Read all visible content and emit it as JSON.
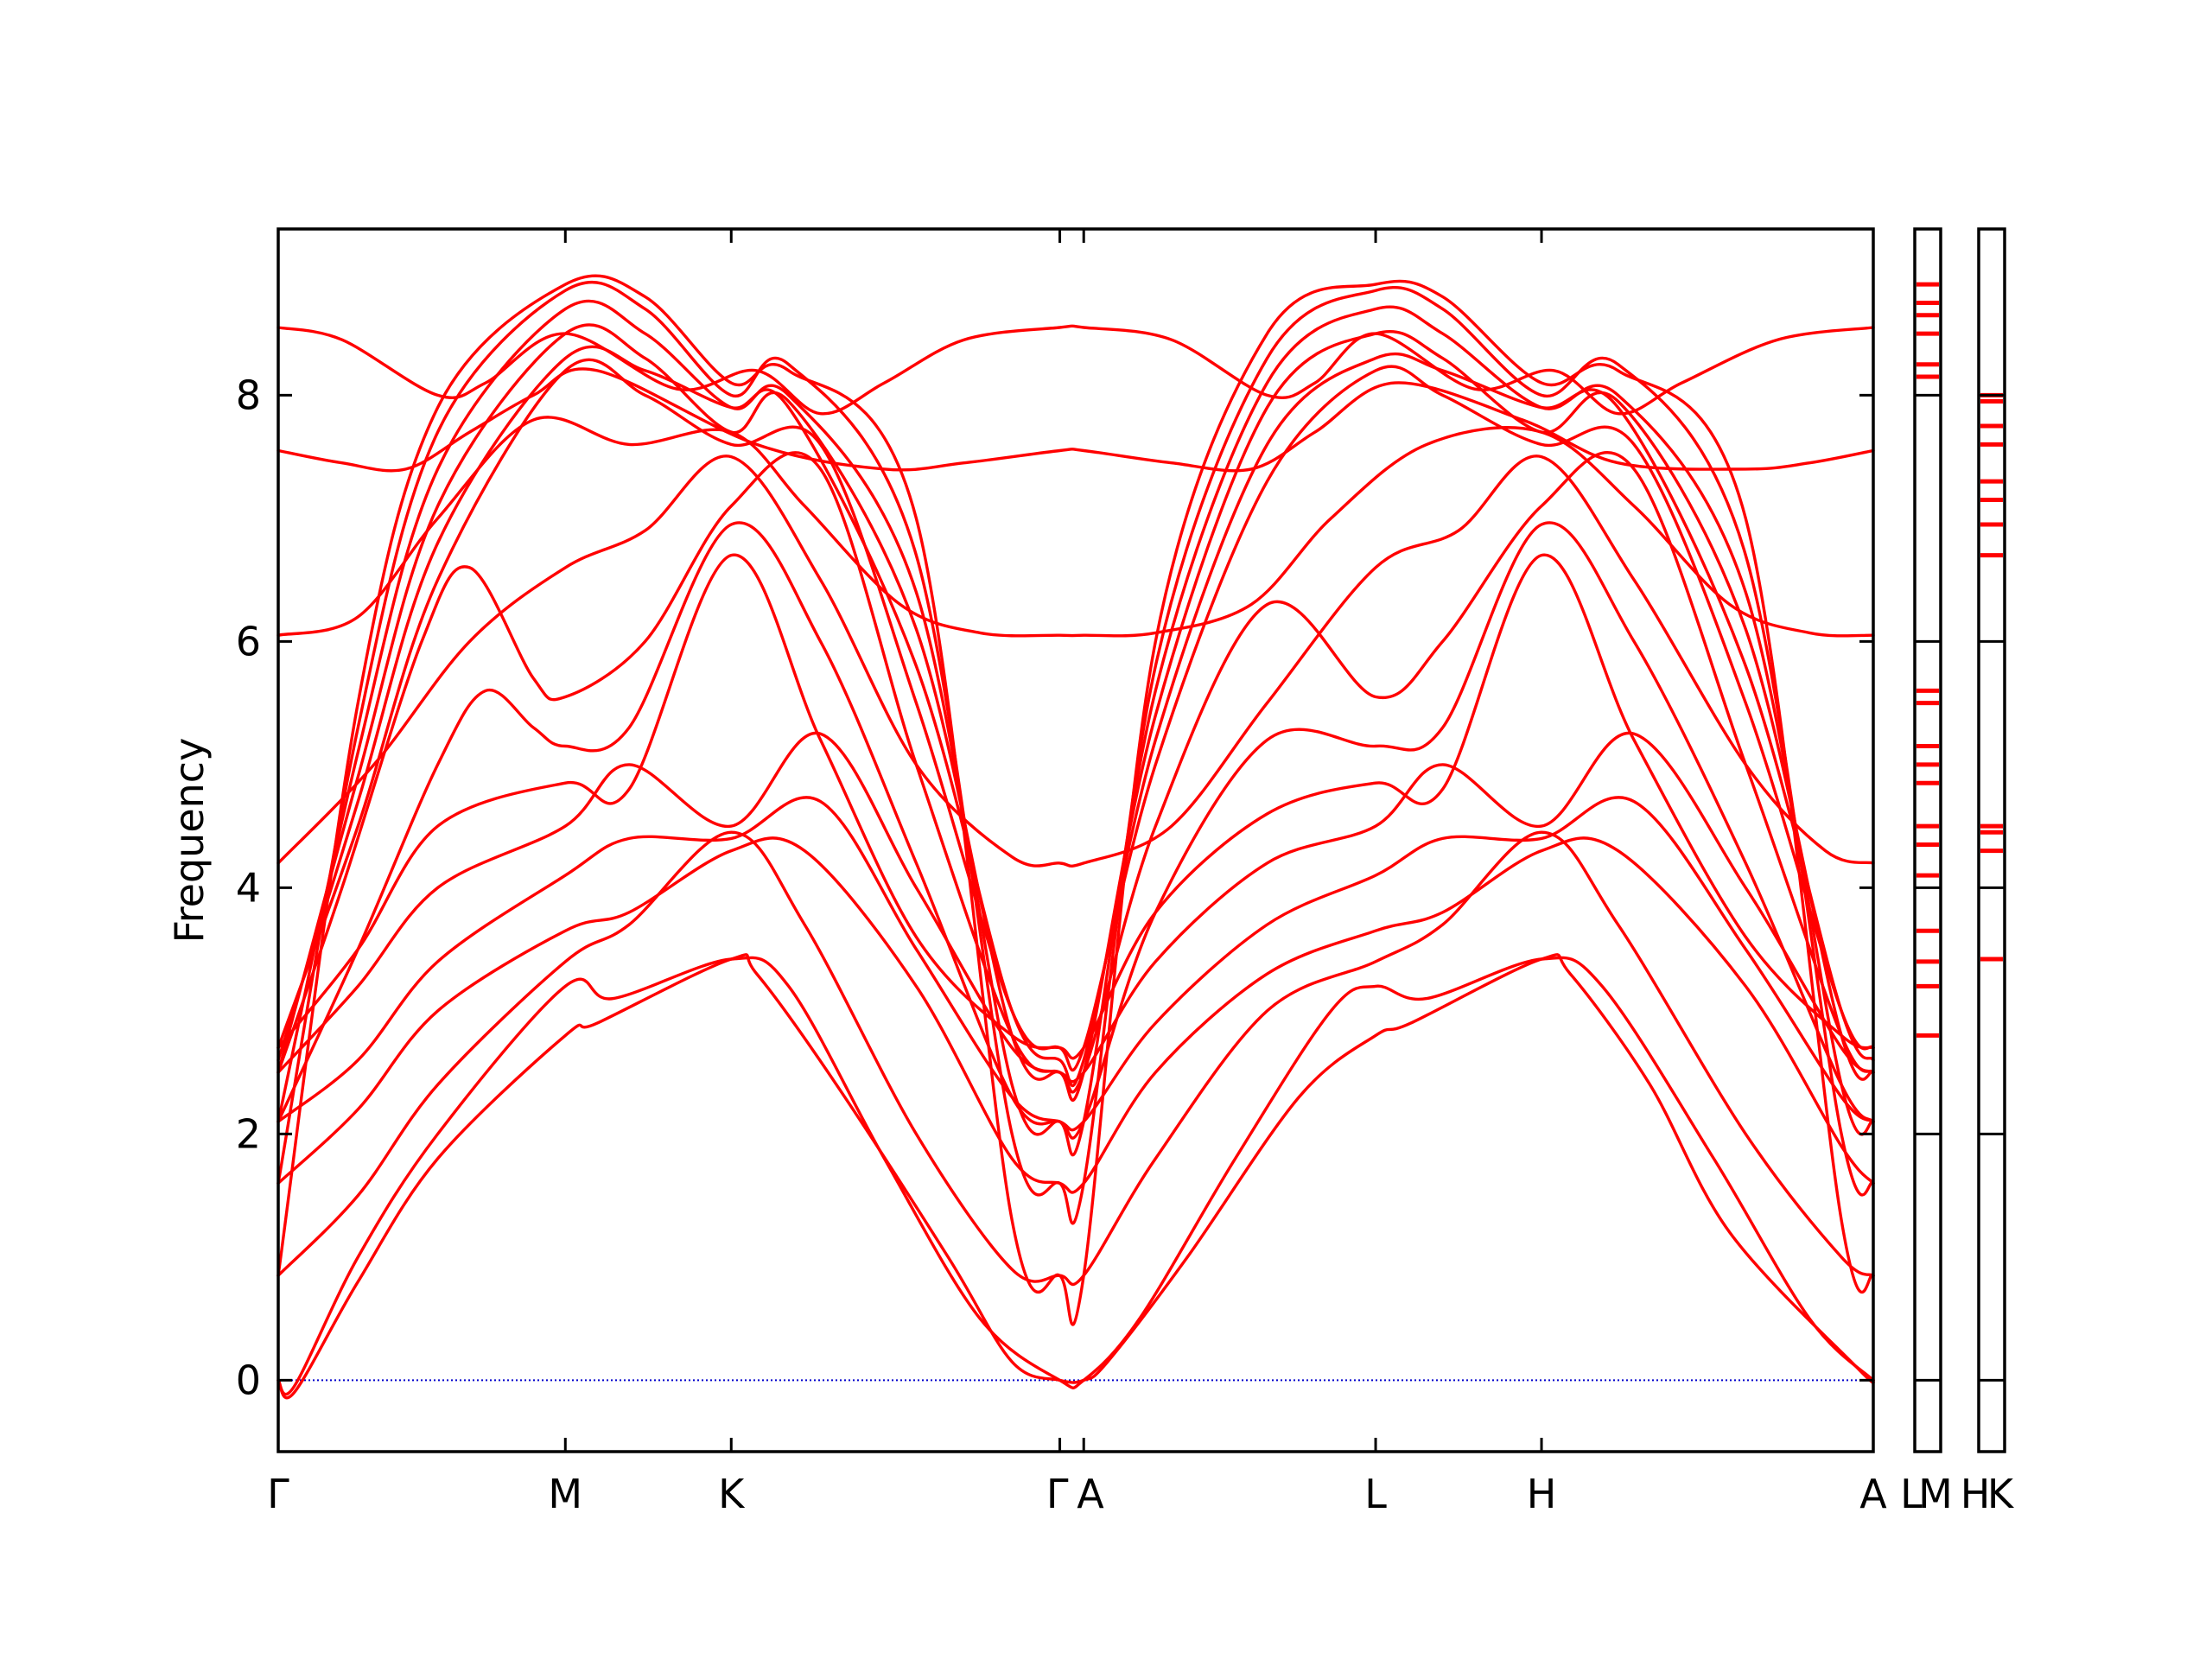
{
  "chart_data": {
    "type": "line",
    "ylabel": "Frequency",
    "ylim": [
      -0.58,
      9.35
    ],
    "yticks": [
      0,
      2,
      4,
      6,
      8
    ],
    "xticks": [
      "Γ",
      "M",
      "K",
      "Γ",
      "A",
      "L",
      "H",
      "A"
    ],
    "side_panel_labels": [
      "L",
      "M",
      "H",
      "K"
    ],
    "series_color": "#ff0000",
    "zero_line_color": "#0000cc",
    "path_points": [
      0,
      0.18,
      0.284,
      0.49,
      0.505,
      0.688,
      0.792,
      1.0
    ],
    "bands": [
      {
        "name": "",
        "x": [
          0,
          0.01,
          0.05,
          0.1,
          0.18,
          0.2,
          0.284,
          0.3,
          0.35,
          0.42,
          0.46,
          0.49,
          0.505,
          0.52,
          0.57,
          0.64,
          0.688,
          0.71,
          0.792,
          0.81,
          0.86,
          0.91,
          0.99,
          1.0
        ],
        "y": [
          0,
          -0.1,
          0.8,
          1.8,
          2.8,
          2.9,
          3.42,
          3.3,
          2.4,
          1.0,
          0.15,
          0,
          0,
          0.15,
          1.0,
          2.3,
          2.8,
          2.9,
          3.42,
          3.3,
          2.4,
          1.2,
          0.1,
          0
        ]
      },
      {
        "name": "",
        "x": [
          0,
          0.01,
          0.05,
          0.1,
          0.18,
          0.21,
          0.284,
          0.32,
          0.38,
          0.44,
          0.49,
          0.505,
          0.54,
          0.6,
          0.66,
          0.688,
          0.72,
          0.792,
          0.83,
          0.9,
          0.96,
          1.0
        ],
        "y": [
          0,
          -0.05,
          1.0,
          2.0,
          3.2,
          3.1,
          3.42,
          3.2,
          1.8,
          0.5,
          0,
          0,
          0.5,
          1.8,
          3.0,
          3.2,
          3.1,
          3.42,
          3.2,
          1.8,
          0.5,
          0
        ]
      },
      {
        "name": "",
        "x": [
          0,
          0.05,
          0.1,
          0.18,
          0.22,
          0.284,
          0.33,
          0.4,
          0.46,
          0.49,
          0.505,
          0.55,
          0.62,
          0.688,
          0.73,
          0.792,
          0.84,
          0.92,
          0.98,
          1.0
        ],
        "y": [
          0.85,
          1.5,
          2.4,
          3.4,
          3.7,
          4.45,
          3.7,
          2.0,
          0.9,
          0.85,
          0.85,
          1.8,
          3.0,
          3.4,
          3.7,
          4.45,
          3.7,
          2.0,
          1.0,
          0.85
        ]
      },
      {
        "name": "",
        "x": [
          0,
          0.05,
          0.1,
          0.18,
          0.22,
          0.284,
          0.33,
          0.4,
          0.46,
          0.49,
          0.505,
          0.55,
          0.62,
          0.688,
          0.73,
          0.792,
          0.84,
          0.92,
          0.98,
          1.0
        ],
        "y": [
          1.6,
          2.2,
          3.0,
          3.65,
          3.8,
          4.3,
          4.3,
          3.2,
          1.8,
          1.6,
          1.6,
          2.5,
          3.3,
          3.65,
          3.8,
          4.3,
          4.3,
          3.2,
          1.9,
          1.6
        ]
      },
      {
        "name": "",
        "x": [
          0,
          0.05,
          0.1,
          0.18,
          0.22,
          0.284,
          0.34,
          0.4,
          0.46,
          0.49,
          0.505,
          0.55,
          0.62,
          0.688,
          0.73,
          0.792,
          0.85,
          0.92,
          0.98,
          1.0
        ],
        "y": [
          2.1,
          2.6,
          3.4,
          4.1,
          4.4,
          4.4,
          4.7,
          3.5,
          2.3,
          2.1,
          2.1,
          2.9,
          3.7,
          4.1,
          4.4,
          4.4,
          4.7,
          3.5,
          2.3,
          2.1
        ]
      },
      {
        "name": "",
        "x": [
          0,
          0.05,
          0.1,
          0.18,
          0.22,
          0.284,
          0.34,
          0.4,
          0.46,
          0.49,
          0.505,
          0.55,
          0.62,
          0.688,
          0.73,
          0.792,
          0.85,
          0.92,
          0.98,
          1.0
        ],
        "y": [
          2.5,
          3.2,
          4.0,
          4.5,
          5.0,
          4.5,
          5.25,
          4.0,
          2.7,
          2.5,
          2.5,
          3.4,
          4.2,
          4.5,
          5.0,
          4.5,
          5.25,
          4.0,
          2.7,
          2.5
        ]
      },
      {
        "name": "",
        "x": [
          0,
          0.05,
          0.1,
          0.18,
          0.22,
          0.284,
          0.34,
          0.4,
          0.46,
          0.49,
          0.505,
          0.55,
          0.62,
          0.688,
          0.73,
          0.792,
          0.85,
          0.92,
          0.98,
          1.0
        ],
        "y": [
          2.7,
          3.5,
          4.5,
          4.85,
          4.8,
          6.7,
          5.2,
          3.6,
          2.8,
          2.7,
          2.7,
          3.8,
          4.6,
          4.85,
          4.8,
          6.7,
          5.2,
          3.6,
          2.8,
          2.7
        ]
      },
      {
        "name": "",
        "x": [
          0,
          0.05,
          0.1,
          0.13,
          0.16,
          0.18,
          0.22,
          0.284,
          0.34,
          0.4,
          0.46,
          0.49,
          0.505,
          0.55,
          0.62,
          0.688,
          0.73,
          0.792,
          0.85,
          0.92,
          0.98,
          1.0
        ],
        "y": [
          2.1,
          3.5,
          5.0,
          5.6,
          5.3,
          5.15,
          5.3,
          6.95,
          6.0,
          4.2,
          2.3,
          2.1,
          2.1,
          3.8,
          5.2,
          5.15,
          5.3,
          6.95,
          6.0,
          4.2,
          2.4,
          2.1
        ]
      },
      {
        "name": "",
        "x": [
          0,
          0.04,
          0.09,
          0.12,
          0.16,
          0.18,
          0.23,
          0.284,
          0.34,
          0.4,
          0.46,
          0.49,
          0.505,
          0.55,
          0.62,
          0.688,
          0.73,
          0.792,
          0.85,
          0.92,
          0.98,
          1.0
        ],
        "y": [
          2.5,
          4.0,
          6.0,
          6.6,
          5.7,
          5.55,
          6.0,
          7.1,
          7.4,
          5.0,
          2.8,
          2.5,
          2.5,
          4.5,
          6.3,
          5.55,
          6.0,
          7.1,
          7.4,
          5.0,
          2.8,
          2.5
        ]
      },
      {
        "name": "",
        "x": [
          0,
          0.05,
          0.1,
          0.18,
          0.23,
          0.284,
          0.34,
          0.4,
          0.46,
          0.49,
          0.505,
          0.55,
          0.62,
          0.688,
          0.73,
          0.792,
          0.85,
          0.92,
          0.98,
          1.0
        ],
        "y": [
          2.7,
          4.5,
          6.5,
          8.2,
          8.0,
          7.6,
          7.6,
          5.5,
          3.0,
          2.7,
          2.7,
          5.0,
          7.3,
          8.2,
          8.0,
          7.6,
          7.6,
          5.5,
          3.0,
          2.7
        ]
      },
      {
        "name": "",
        "x": [
          0,
          0.05,
          0.1,
          0.18,
          0.23,
          0.284,
          0.32,
          0.4,
          0.46,
          0.49,
          0.505,
          0.55,
          0.62,
          0.688,
          0.73,
          0.792,
          0.84,
          0.92,
          0.98,
          1.0
        ],
        "y": [
          2.6,
          4.7,
          6.8,
          8.3,
          8.2,
          7.9,
          7.9,
          5.8,
          3.0,
          2.6,
          2.6,
          5.2,
          7.6,
          8.3,
          8.2,
          7.9,
          7.9,
          5.8,
          3.0,
          2.6
        ]
      },
      {
        "name": "",
        "x": [
          0,
          0.05,
          0.1,
          0.18,
          0.23,
          0.284,
          0.32,
          0.4,
          0.46,
          0.49,
          0.505,
          0.55,
          0.62,
          0.688,
          0.73,
          0.792,
          0.84,
          0.92,
          0.98,
          1.0
        ],
        "y": [
          2.5,
          4.9,
          7.1,
          8.5,
          8.3,
          7.7,
          7.95,
          6.1,
          2.8,
          2.5,
          2.5,
          5.4,
          7.9,
          8.5,
          8.3,
          7.7,
          7.95,
          6.1,
          2.8,
          2.5
        ]
      },
      {
        "name": "",
        "x": [
          0,
          0.05,
          0.1,
          0.18,
          0.23,
          0.284,
          0.32,
          0.4,
          0.46,
          0.49,
          0.505,
          0.55,
          0.62,
          0.688,
          0.73,
          0.792,
          0.84,
          0.92,
          0.98,
          1.0
        ],
        "y": [
          2.1,
          5.1,
          7.4,
          8.7,
          8.5,
          7.9,
          8.0,
          6.4,
          2.4,
          2.1,
          2.1,
          5.6,
          8.1,
          8.7,
          8.5,
          7.9,
          8.0,
          6.4,
          2.4,
          2.1
        ]
      },
      {
        "name": "",
        "x": [
          0,
          0.05,
          0.1,
          0.18,
          0.23,
          0.284,
          0.32,
          0.4,
          0.46,
          0.49,
          0.505,
          0.55,
          0.62,
          0.688,
          0.73,
          0.792,
          0.84,
          0.92,
          0.98,
          1.0
        ],
        "y": [
          1.6,
          5.3,
          7.7,
          8.85,
          8.7,
          8.0,
          8.25,
          6.7,
          2.0,
          1.6,
          1.6,
          5.8,
          8.3,
          8.85,
          8.7,
          8.0,
          8.25,
          6.7,
          2.0,
          1.6
        ]
      },
      {
        "name": "",
        "x": [
          0,
          0.05,
          0.1,
          0.18,
          0.23,
          0.284,
          0.32,
          0.4,
          0.46,
          0.49,
          0.505,
          0.55,
          0.62,
          0.688,
          0.73,
          0.792,
          0.84,
          0.92,
          0.98,
          1.0
        ],
        "y": [
          0.85,
          5.5,
          7.9,
          8.9,
          8.8,
          8.1,
          8.2,
          7.0,
          1.3,
          0.85,
          0.85,
          6.0,
          8.5,
          8.9,
          8.8,
          8.1,
          8.2,
          7.0,
          1.3,
          0.85
        ]
      },
      {
        "name": "",
        "x": [
          0,
          0.06,
          0.12,
          0.18,
          0.23,
          0.284,
          0.34,
          0.4,
          0.46,
          0.49,
          0.505,
          0.56,
          0.62,
          0.688,
          0.74,
          0.792,
          0.85,
          0.92,
          0.97,
          1.0
        ],
        "y": [
          4.2,
          5.0,
          6.0,
          6.6,
          6.9,
          7.5,
          6.5,
          5.0,
          4.25,
          4.2,
          4.2,
          4.5,
          5.5,
          6.6,
          6.9,
          7.5,
          6.5,
          5.0,
          4.3,
          4.2
        ]
      },
      {
        "name": "",
        "x": [
          0,
          0.05,
          0.1,
          0.16,
          0.22,
          0.284,
          0.33,
          0.39,
          0.44,
          0.49,
          0.505,
          0.55,
          0.61,
          0.66,
          0.72,
          0.792,
          0.85,
          0.91,
          0.96,
          1.0
        ],
        "y": [
          6.05,
          6.2,
          7.0,
          7.8,
          7.6,
          7.7,
          7.1,
          6.3,
          6.07,
          6.05,
          6.05,
          6.07,
          6.3,
          7.0,
          7.6,
          7.7,
          7.1,
          6.3,
          6.07,
          6.05
        ]
      },
      {
        "name": "",
        "x": [
          0,
          0.04,
          0.08,
          0.12,
          0.16,
          0.2,
          0.3,
          0.38,
          0.43,
          0.49,
          0.505,
          0.56,
          0.61,
          0.65,
          0.7,
          0.78,
          0.84,
          0.92,
          0.96,
          1.0
        ],
        "y": [
          7.55,
          7.45,
          7.4,
          7.7,
          8.0,
          8.2,
          7.6,
          7.4,
          7.45,
          7.55,
          7.55,
          7.45,
          7.4,
          7.7,
          8.1,
          7.8,
          7.45,
          7.4,
          7.45,
          7.55
        ]
      },
      {
        "name": "",
        "x": [
          0,
          0.04,
          0.1,
          0.13,
          0.18,
          0.25,
          0.3,
          0.34,
          0.38,
          0.43,
          0.49,
          0.505,
          0.56,
          0.62,
          0.65,
          0.688,
          0.75,
          0.8,
          0.84,
          0.88,
          0.94,
          1.0
        ],
        "y": [
          8.55,
          8.45,
          8.0,
          8.1,
          8.5,
          8.05,
          8.2,
          7.85,
          8.1,
          8.45,
          8.55,
          8.55,
          8.45,
          8.0,
          8.1,
          8.5,
          8.05,
          8.2,
          7.85,
          8.1,
          8.45,
          8.55
        ]
      }
    ],
    "side_panels": [
      {
        "label": "L",
        "levels": [
          2.8,
          3.2,
          3.4,
          3.65,
          4.1,
          4.35,
          4.5,
          4.85,
          5.0,
          5.15,
          5.5,
          5.6,
          8.15,
          8.25,
          8.5,
          8.65,
          8.75,
          8.9
        ]
      },
      {
        "label": "K",
        "levels": [
          3.42,
          4.3,
          4.45,
          4.5,
          6.7,
          6.95,
          7.15,
          7.3,
          7.6,
          7.75,
          7.95,
          8.0
        ]
      }
    ]
  }
}
